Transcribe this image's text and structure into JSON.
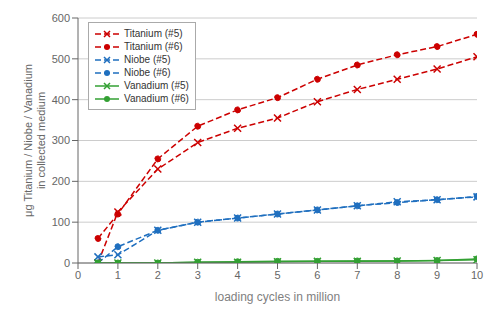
{
  "chart_data": {
    "type": "line",
    "xlabel": "loading cycles  in million",
    "ylabel": "μg Titanium / Niobe / Vanadium\nin collected medium",
    "x": [
      0.5,
      1,
      2,
      3,
      4,
      5,
      6,
      7,
      8,
      9,
      10
    ],
    "series": [
      {
        "name": "Titanium (#5)",
        "color": "#cc0000",
        "marker": "x",
        "line_style": "dashed",
        "values": [
          0,
          125,
          230,
          295,
          330,
          355,
          395,
          425,
          450,
          475,
          505
        ]
      },
      {
        "name": "Titanium (#6)",
        "color": "#cc0000",
        "marker": "o",
        "line_style": "dashed",
        "values": [
          60,
          120,
          255,
          335,
          375,
          405,
          450,
          485,
          510,
          530,
          560
        ]
      },
      {
        "name": "Niobe (#5)",
        "color": "#1f6fbf",
        "marker": "x",
        "line_style": "dashed",
        "values": [
          15,
          20,
          80,
          100,
          110,
          120,
          130,
          140,
          150,
          155,
          162
        ]
      },
      {
        "name": "Niobe (#6)",
        "color": "#1f6fbf",
        "marker": "o",
        "line_style": "dashed",
        "values": [
          0,
          40,
          80,
          100,
          110,
          120,
          130,
          140,
          148,
          155,
          163
        ]
      },
      {
        "name": "Vanadium (#5)",
        "color": "#33a033",
        "marker": "x",
        "line_style": "solid",
        "values": [
          0,
          0,
          0,
          2,
          2,
          3,
          4,
          4,
          5,
          6,
          8
        ]
      },
      {
        "name": "Vanadium (#6)",
        "color": "#33a033",
        "marker": "o",
        "line_style": "solid",
        "values": [
          0,
          0,
          0,
          2,
          3,
          4,
          4,
          5,
          5,
          6,
          10
        ]
      }
    ],
    "xlim": [
      0,
      10
    ],
    "ylim": [
      0,
      600
    ],
    "xticks": [
      0,
      1,
      2,
      3,
      4,
      5,
      6,
      7,
      8,
      9,
      10
    ],
    "yticks": [
      0,
      100,
      200,
      300,
      400,
      500,
      600
    ],
    "grid": "y",
    "legend": "upper left"
  }
}
